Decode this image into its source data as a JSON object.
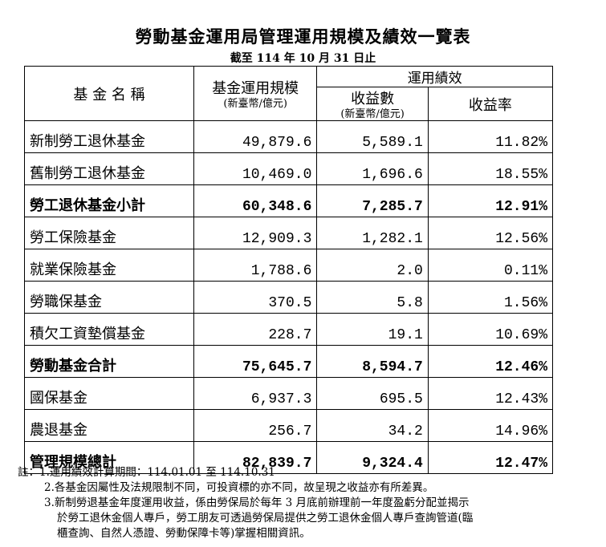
{
  "title": "勞動基金運用局管理運用規模及績效一覽表",
  "subtitle": "截至 114 年 10 月 31 日止",
  "headers": {
    "fund_name": "基 金 名 稱",
    "scale": "基金運用規模",
    "scale_unit": "(新臺幣/億元)",
    "performance": "運用績效",
    "income": "收益數",
    "income_unit": "(新臺幣/億元)",
    "rate": "收益率"
  },
  "rows": [
    {
      "name": "新制勞工退休基金",
      "scale": "49,879.6",
      "income": "5,589.1",
      "rate": "11.82%",
      "bold": false
    },
    {
      "name": "舊制勞工退休基金",
      "scale": "10,469.0",
      "income": "1,696.6",
      "rate": "18.55%",
      "bold": false
    },
    {
      "name": "勞工退休基金小計",
      "scale": "60,348.6",
      "income": "7,285.7",
      "rate": "12.91%",
      "bold": true
    },
    {
      "name": "勞工保險基金",
      "scale": "12,909.3",
      "income": "1,282.1",
      "rate": "12.56%",
      "bold": false
    },
    {
      "name": "就業保險基金",
      "scale": "1,788.6",
      "income": "2.0",
      "rate": "0.11%",
      "bold": false
    },
    {
      "name": "勞職保基金",
      "scale": "370.5",
      "income": "5.8",
      "rate": "1.56%",
      "bold": false
    },
    {
      "name": "積欠工資墊償基金",
      "scale": "228.7",
      "income": "19.1",
      "rate": "10.69%",
      "bold": false
    },
    {
      "name": "勞動基金合計",
      "scale": "75,645.7",
      "income": "8,594.7",
      "rate": "12.46%",
      "bold": true
    },
    {
      "name": "國保基金",
      "scale": "6,937.3",
      "income": "695.5",
      "rate": "12.43%",
      "bold": false
    },
    {
      "name": "農退基金",
      "scale": "256.7",
      "income": "34.2",
      "rate": "14.96%",
      "bold": false
    },
    {
      "name": "管理規模總計",
      "scale": "82,839.7",
      "income": "9,324.4",
      "rate": "12.47%",
      "bold": true
    }
  ],
  "notes": [
    "註：1.運用績效計算期間：114.01.01 至 114.10.31",
    "2.各基金因屬性及法規限制不同，可投資標的亦不同，故呈現之收益亦有所差異。",
    "3.新制勞退基金年度運用收益，係由勞保局於每年 3 月底前辦理前一年度盈虧分配並揭示",
    "於勞工退休金個人專戶，勞工朋友可透過勞保局提供之勞工退休金個人專戶查詢管道(臨",
    "櫃查詢、自然人憑證、勞動保障卡等)掌握相關資訊。"
  ]
}
